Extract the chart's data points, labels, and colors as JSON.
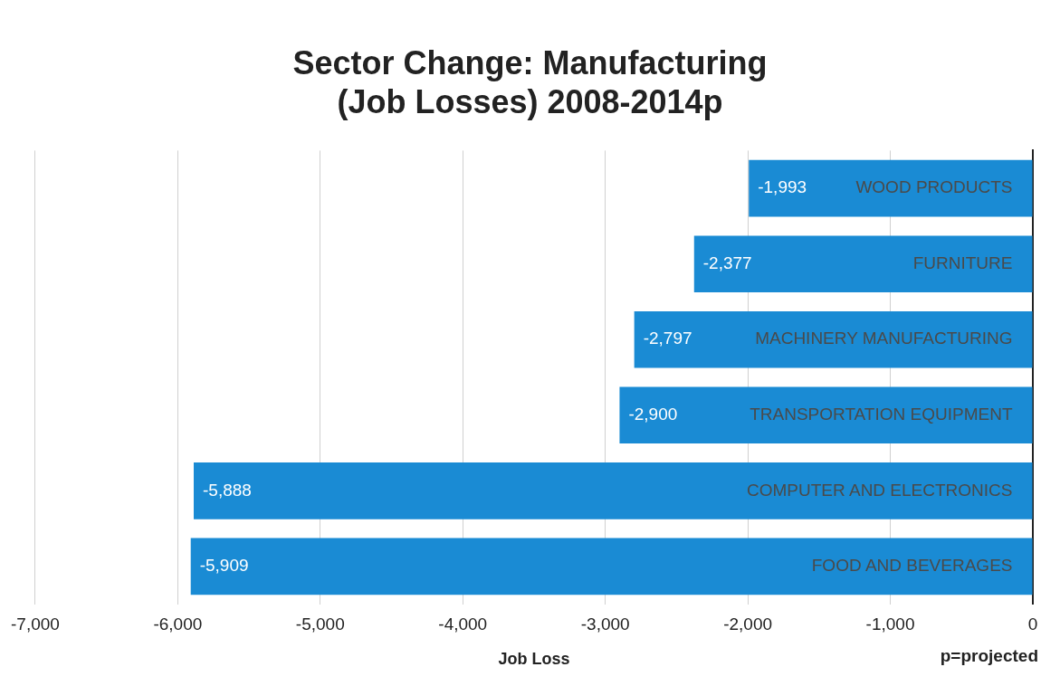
{
  "chart_data": {
    "type": "bar",
    "orientation": "horizontal",
    "title": "Sector Change: Manufacturing\n(Job Losses) 2008-2014p",
    "xlabel": "Job Loss",
    "categories": [
      "WOOD PRODUCTS",
      "FURNITURE",
      "MACHINERY MANUFACTURING",
      "TRANSPORTATION EQUIPMENT",
      "COMPUTER AND ELECTRONICS",
      "FOOD AND BEVERAGES"
    ],
    "values": [
      -1993,
      -2377,
      -2797,
      -2900,
      -5888,
      -5909
    ],
    "color": "#1a8bd4",
    "xlim": [
      -7000,
      0
    ],
    "xticks": [
      {
        "value": -7000,
        "label": "-7,000"
      },
      {
        "value": -6000,
        "label": "-6,000"
      },
      {
        "value": -5000,
        "label": "-5,000"
      },
      {
        "value": -4000,
        "label": "-4,000"
      },
      {
        "value": -3000,
        "label": "-3,000"
      },
      {
        "value": -2000,
        "label": "-2,000"
      },
      {
        "value": -1000,
        "label": "-1,000"
      },
      0
    ],
    "grid": "x",
    "value_labels": [
      "-1,993",
      "-2,377",
      "-2,797",
      "-2,900",
      "-5,888",
      "-5,909"
    ],
    "legend": false,
    "annotations": [
      "p=projected"
    ]
  }
}
